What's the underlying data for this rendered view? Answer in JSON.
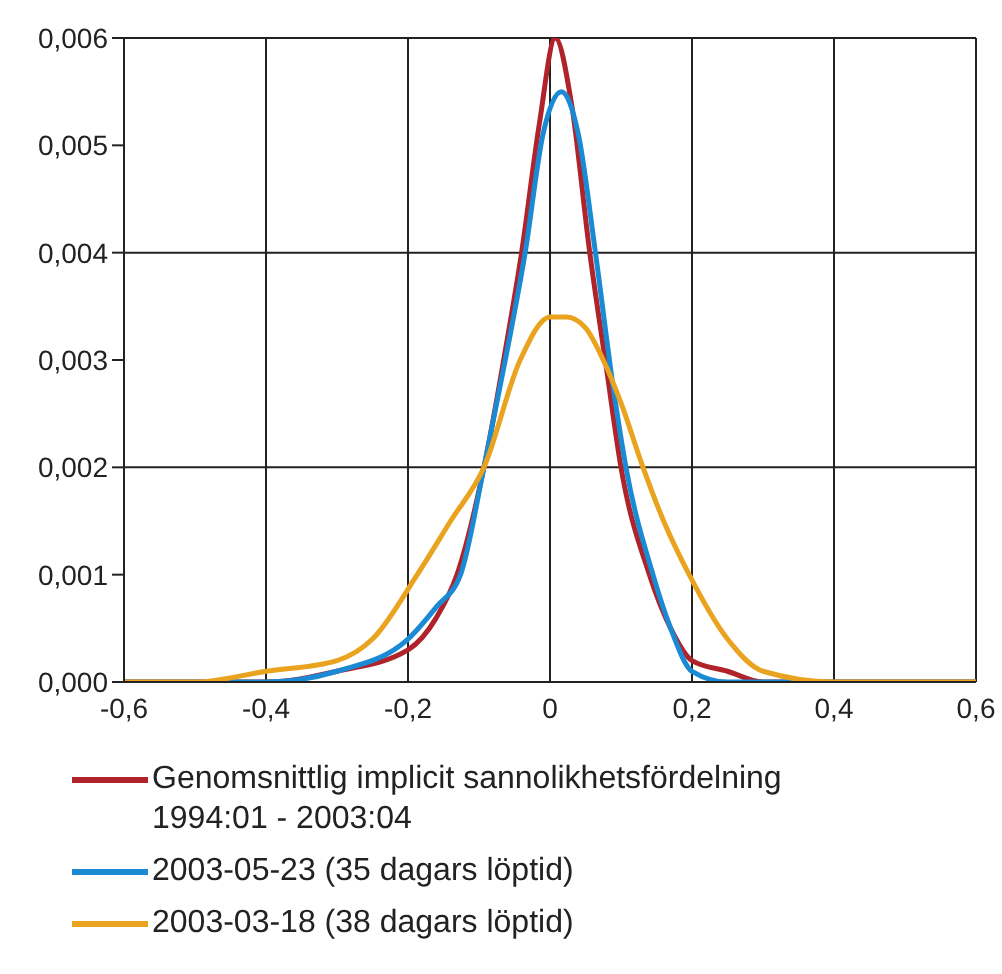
{
  "chart_data": {
    "type": "line",
    "xlim": [
      -0.6,
      0.6
    ],
    "xticks": [
      {
        "value": -0.6,
        "label": "-0,6"
      },
      {
        "value": -0.4,
        "label": "-0,4"
      },
      {
        "value": -0.2,
        "label": "-0,2"
      },
      {
        "value": 0,
        "label": "0"
      },
      {
        "value": 0.2,
        "label": "0,2"
      },
      {
        "value": 0.4,
        "label": "0,4"
      },
      {
        "value": 0.6,
        "label": "0,6"
      }
    ],
    "ylim": [
      0,
      0.006
    ],
    "yticks": [
      {
        "value": 0,
        "label": "0,000"
      },
      {
        "value": 0.001,
        "label": "0,001"
      },
      {
        "value": 0.002,
        "label": "0,002"
      },
      {
        "value": 0.003,
        "label": "0,003"
      },
      {
        "value": 0.004,
        "label": "0,004"
      },
      {
        "value": 0.005,
        "label": "0,005"
      },
      {
        "value": 0.006,
        "label": "0,006"
      }
    ],
    "grid": true,
    "legend": "bottom",
    "marker": "none",
    "line_style": "solid",
    "series": [
      {
        "name": "Genomsnittlig implicit sannolikhetsfördelning 1994:01 - 2003:04",
        "color": "#b0232a",
        "x": [
          -0.6,
          -0.4,
          -0.3,
          -0.2,
          -0.16,
          -0.131,
          -0.093,
          -0.06,
          -0.04,
          -0.015,
          0.0075,
          0.03,
          0.056,
          0.08,
          0.1,
          0.14,
          0.17,
          0.2,
          0.25,
          0.3,
          0.4,
          0.6
        ],
        "values": [
          0,
          0,
          0.0001,
          0.0003,
          0.0006,
          0.001,
          0.002,
          0.0032,
          0.004,
          0.0052,
          0.006,
          0.0054,
          0.004,
          0.0029,
          0.002,
          0.001,
          0.0005,
          0.0002,
          0.0001,
          0,
          0,
          0
        ]
      },
      {
        "name": "2003-05-23 (35 dagars löptid)",
        "color": "#1a8ad4",
        "x": [
          -0.6,
          -0.4,
          -0.3,
          -0.2,
          -0.16,
          -0.126,
          -0.093,
          -0.06,
          -0.035,
          -0.01,
          0.016,
          0.04,
          0.064,
          0.09,
          0.107,
          0.145,
          0.17,
          0.2,
          0.25,
          0.3,
          0.6
        ],
        "values": [
          0,
          0,
          0.0001,
          0.0004,
          0.0007,
          0.001,
          0.002,
          0.0031,
          0.004,
          0.0051,
          0.0055,
          0.0051,
          0.004,
          0.0027,
          0.002,
          0.001,
          0.0005,
          0.0001,
          0,
          0,
          0
        ]
      },
      {
        "name": "2003-03-18 (38 dagars löptid)",
        "color": "#e9a31f",
        "x": [
          -0.6,
          -0.5,
          -0.4,
          -0.3,
          -0.25,
          -0.187,
          -0.14,
          -0.093,
          -0.042,
          0,
          0.023,
          0.05,
          0.075,
          0.1,
          0.131,
          0.16,
          0.196,
          0.25,
          0.3,
          0.4,
          0.6
        ],
        "values": [
          0,
          0,
          0.0001,
          0.0002,
          0.0004,
          0.001,
          0.0015,
          0.002,
          0.003,
          0.0034,
          0.0034,
          0.0033,
          0.003,
          0.0026,
          0.002,
          0.0015,
          0.001,
          0.0004,
          0.0001,
          0,
          0
        ]
      }
    ]
  }
}
